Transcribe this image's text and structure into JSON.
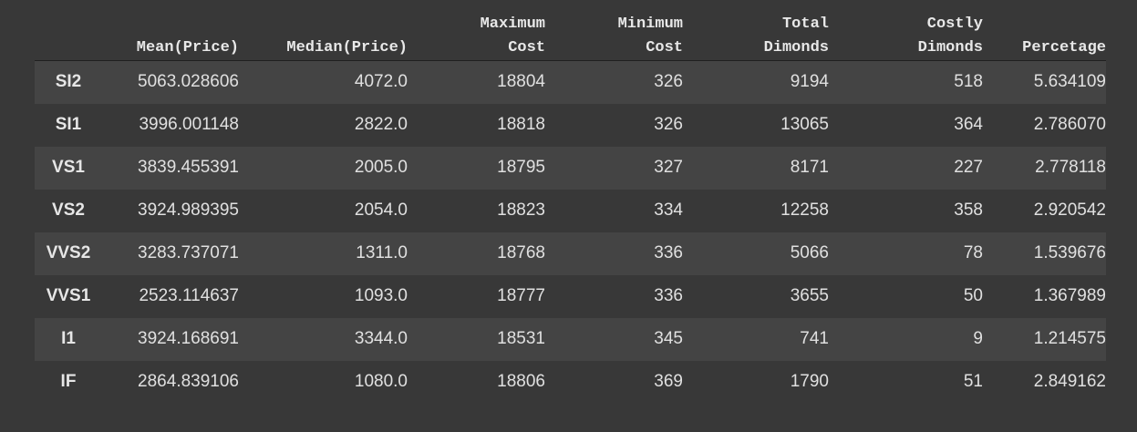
{
  "table": {
    "columns": [
      "",
      "Mean(Price)",
      "Median(Price)",
      "Maximum\nCost",
      "Minimum\nCost",
      "Total\nDimonds",
      "Costly\nDimonds",
      "Percetage"
    ],
    "rows": [
      {
        "index": "SI2",
        "cells": [
          "5063.028606",
          "4072.0",
          "18804",
          "326",
          "9194",
          "518",
          "5.634109"
        ]
      },
      {
        "index": "SI1",
        "cells": [
          "3996.001148",
          "2822.0",
          "18818",
          "326",
          "13065",
          "364",
          "2.786070"
        ]
      },
      {
        "index": "VS1",
        "cells": [
          "3839.455391",
          "2005.0",
          "18795",
          "327",
          "8171",
          "227",
          "2.778118"
        ]
      },
      {
        "index": "VS2",
        "cells": [
          "3924.989395",
          "2054.0",
          "18823",
          "334",
          "12258",
          "358",
          "2.920542"
        ]
      },
      {
        "index": "VVS2",
        "cells": [
          "3283.737071",
          "1311.0",
          "18768",
          "336",
          "5066",
          "78",
          "1.539676"
        ]
      },
      {
        "index": "VVS1",
        "cells": [
          "2523.114637",
          "1093.0",
          "18777",
          "336",
          "3655",
          "50",
          "1.367989"
        ]
      },
      {
        "index": "I1",
        "cells": [
          "3924.168691",
          "3344.0",
          "18531",
          "345",
          "741",
          "9",
          "1.214575"
        ]
      },
      {
        "index": "IF",
        "cells": [
          "2864.839106",
          "1080.0",
          "18806",
          "369",
          "1790",
          "51",
          "2.849162"
        ]
      }
    ]
  },
  "colors": {
    "background": "#383838",
    "row_stripe": "#444444",
    "header_rule": "#1f1f1f",
    "text": "#e6e6e6"
  }
}
